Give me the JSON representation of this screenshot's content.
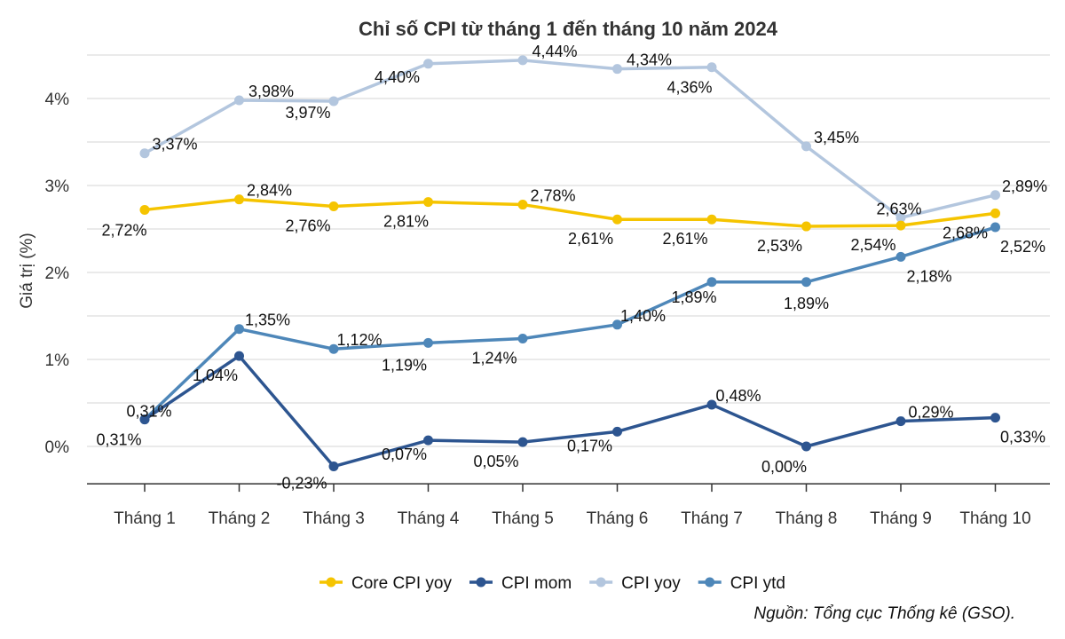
{
  "chart_data": {
    "type": "line",
    "title": "Chỉ số CPI từ tháng 1 đến tháng 10 năm 2024",
    "xlabel": "",
    "ylabel": "Giá trị (%)",
    "ylim": [
      -0.45,
      4.55
    ],
    "yticks": [
      0,
      1,
      2,
      3,
      4
    ],
    "ytick_labels": [
      "0%",
      "1%",
      "2%",
      "3%",
      "4%"
    ],
    "grid": true,
    "legend_position": "bottom-center",
    "categories": [
      "Tháng 1",
      "Tháng 2",
      "Tháng 3",
      "Tháng 4",
      "Tháng 5",
      "Tháng 6",
      "Tháng 7",
      "Tháng 8",
      "Tháng 9",
      "Tháng 10"
    ],
    "series": [
      {
        "name": "Core CPI yoy",
        "color": "#F5C400",
        "values": [
          2.72,
          2.84,
          2.76,
          2.81,
          2.78,
          2.61,
          2.61,
          2.53,
          2.54,
          2.68
        ],
        "labels": [
          "2,72%",
          "2,84%",
          "2,76%",
          "2,81%",
          "2,78%",
          "2,61%",
          "2,61%",
          "2,53%",
          "2,54%",
          "2,68%"
        ]
      },
      {
        "name": "CPI mom",
        "color": "#2D5590",
        "values": [
          0.31,
          1.04,
          -0.23,
          0.07,
          0.05,
          0.17,
          0.48,
          0.0,
          0.29,
          0.33
        ],
        "labels": [
          "0,31%",
          "1,04%",
          "-0,23%",
          "0,07%",
          "0,05%",
          "0,17%",
          "0,48%",
          "0,00%",
          "0,29%",
          "0,33%"
        ]
      },
      {
        "name": "CPI yoy",
        "color": "#B3C6DE",
        "values": [
          3.37,
          3.98,
          3.97,
          4.4,
          4.44,
          4.34,
          4.36,
          3.45,
          2.63,
          2.89
        ],
        "labels": [
          "3,37%",
          "3,98%",
          "3,97%",
          "4,40%",
          "4,44%",
          "4,34%",
          "4,36%",
          "3,45%",
          "2,63%",
          "2,89%"
        ]
      },
      {
        "name": "CPI ytd",
        "color": "#4E87B9",
        "values": [
          0.31,
          1.35,
          1.12,
          1.19,
          1.24,
          1.4,
          1.89,
          1.89,
          2.18,
          2.52
        ],
        "labels": [
          "0,31%",
          "1,35%",
          "1,12%",
          "1,19%",
          "1,24%",
          "1,40%",
          "1,89%",
          "1,89%",
          "2,18%",
          "2,52%"
        ]
      }
    ],
    "source": "Nguồn: Tổng cục Thống kê (GSO)."
  }
}
